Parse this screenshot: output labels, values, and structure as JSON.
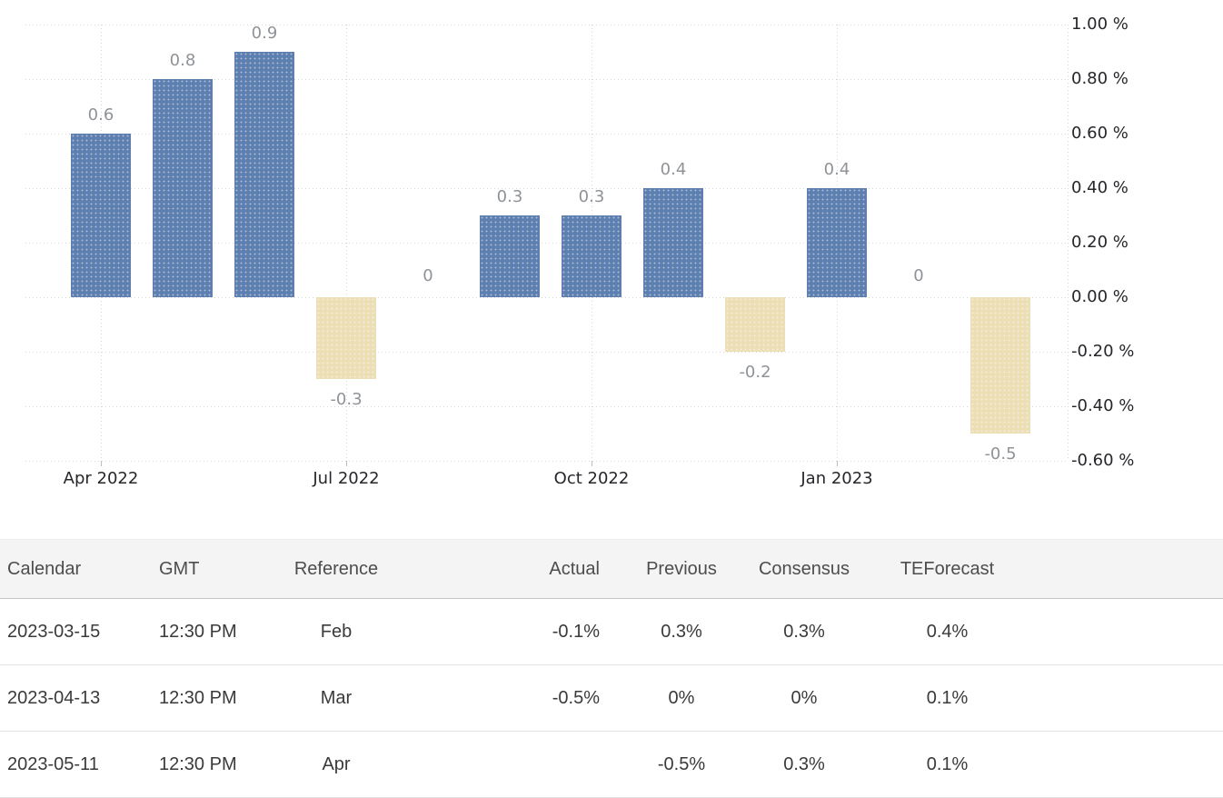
{
  "chart_data": {
    "type": "bar",
    "title": "",
    "ylabel": "%",
    "ylim": [
      -0.6,
      1.0
    ],
    "grid": "dotted",
    "legend": "none",
    "bars": [
      {
        "value": 0.6,
        "label": "0.6"
      },
      {
        "value": 0.8,
        "label": "0.8"
      },
      {
        "value": 0.9,
        "label": "0.9"
      },
      {
        "value": -0.3,
        "label": "-0.3"
      },
      {
        "value": 0,
        "label": "0"
      },
      {
        "value": 0.3,
        "label": "0.3"
      },
      {
        "value": 0.3,
        "label": "0.3"
      },
      {
        "value": 0.4,
        "label": "0.4"
      },
      {
        "value": -0.2,
        "label": "-0.2"
      },
      {
        "value": 0.4,
        "label": "0.4"
      },
      {
        "value": 0,
        "label": "0"
      },
      {
        "value": -0.5,
        "label": "-0.5"
      }
    ],
    "x_axis_ticks": [
      {
        "label": "Apr 2022",
        "bar_index": 0
      },
      {
        "label": "Jul 2022",
        "bar_index": 3
      },
      {
        "label": "Oct 2022",
        "bar_index": 6
      },
      {
        "label": "Jan 2023",
        "bar_index": 9
      }
    ],
    "y_axis_ticks": [
      {
        "value": 1.0,
        "label": "1.00 %"
      },
      {
        "value": 0.8,
        "label": "0.80 %"
      },
      {
        "value": 0.6,
        "label": "0.60 %"
      },
      {
        "value": 0.4,
        "label": "0.40 %"
      },
      {
        "value": 0.2,
        "label": "0.20 %"
      },
      {
        "value": 0.0,
        "label": "0.00 %"
      },
      {
        "value": -0.2,
        "label": "-0.20 %"
      },
      {
        "value": -0.4,
        "label": "-0.40 %"
      },
      {
        "value": -0.6,
        "label": "-0.60 %"
      }
    ],
    "colors": {
      "positive_bar": "#5e80b1",
      "negative_bar": "#ecdfb5",
      "value_label": "#8f9398",
      "axis_label": "#26262b",
      "grid": "#d5d5d5"
    }
  },
  "table": {
    "headers": [
      "Calendar",
      "GMT",
      "Reference",
      "Actual",
      "Previous",
      "Consensus",
      "TEForecast"
    ],
    "rows": [
      [
        "2023-03-15",
        "12:30 PM",
        "Feb",
        "-0.1%",
        "0.3%",
        "0.3%",
        "0.4%"
      ],
      [
        "2023-04-13",
        "12:30 PM",
        "Mar",
        "-0.5%",
        "0%",
        "0%",
        "0.1%"
      ],
      [
        "2023-05-11",
        "12:30 PM",
        "Apr",
        "",
        "-0.5%",
        "0.3%",
        "0.1%"
      ]
    ]
  }
}
